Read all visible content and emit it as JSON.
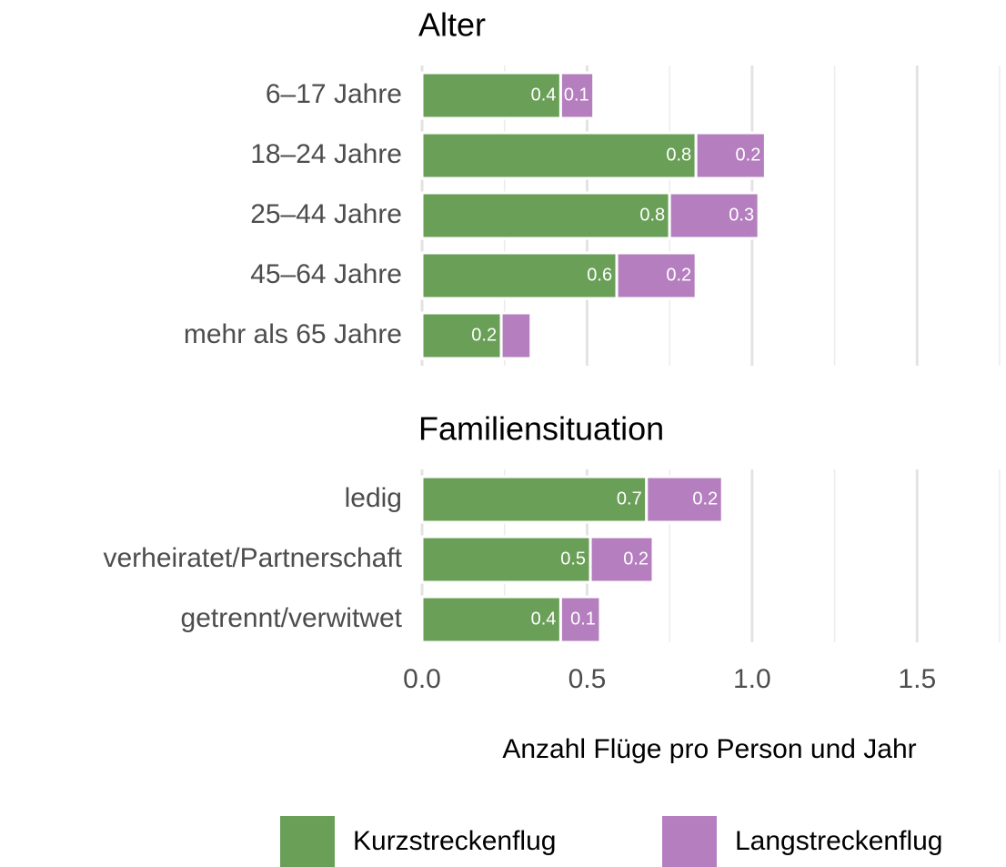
{
  "chart_data": {
    "type": "bar",
    "orientation": "horizontal",
    "stacked": true,
    "xlabel": "Anzahl Flüge pro Person und Jahr",
    "xlim": [
      0,
      1.75
    ],
    "xticks": [
      {
        "value": 0,
        "label": "0.0"
      },
      0.5,
      {
        "value": 1,
        "label": "1.0"
      },
      1.5
    ],
    "minor_xticks": [
      0.25,
      0.75,
      1.25,
      1.75
    ],
    "grid": true,
    "legend": "bottom",
    "series": [
      {
        "name": "Kurzstreckenflug",
        "color": "#6a9f58"
      },
      {
        "name": "Langstreckenflug",
        "color": "#b57fbf"
      }
    ],
    "panels": [
      {
        "title": "Alter",
        "categories": [
          "6–17 Jahre",
          "18–24 Jahre",
          "25–44 Jahre",
          "45–64 Jahre",
          "mehr als 65 Jahre"
        ],
        "values": [
          [
            0.42,
            0.83,
            0.75,
            0.59,
            0.24
          ],
          [
            0.1,
            0.21,
            0.27,
            0.24,
            0.09
          ]
        ],
        "value_labels": [
          [
            "0.4",
            "0.8",
            "0.8",
            "0.6",
            "0.2"
          ],
          [
            "0.1",
            "0.2",
            "0.3",
            "0.2",
            null
          ]
        ]
      },
      {
        "title": "Familiensituation",
        "categories": [
          "ledig",
          "verheiratet/Partnerschaft",
          "getrennt/verwitwet"
        ],
        "values": [
          [
            0.68,
            0.51,
            0.42
          ],
          [
            0.23,
            0.19,
            0.12
          ]
        ],
        "value_labels": [
          [
            "0.7",
            "0.5",
            "0.4"
          ],
          [
            "0.2",
            "0.2",
            "0.1"
          ]
        ]
      }
    ]
  }
}
